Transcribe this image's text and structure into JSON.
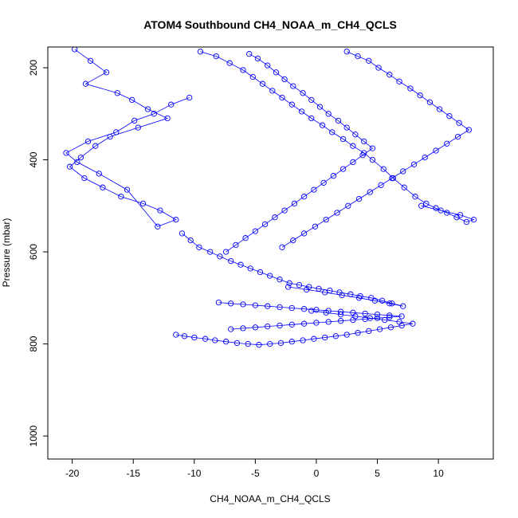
{
  "chart_data": {
    "type": "scatter",
    "title": "ATOM4 Southbound CH4_NOAA_m_CH4_QCLS",
    "xlabel": "CH4_NOAA_m_CH4_QCLS",
    "ylabel": "Pressure (mbar)",
    "xlim": [
      -22,
      14.5
    ],
    "ylim": [
      1050,
      155
    ],
    "y_reversed": true,
    "x_ticks": [
      -20,
      -15,
      -10,
      -5,
      0,
      5,
      10
    ],
    "x_tick_labels": [
      "-20",
      "-15",
      "-10",
      "-5",
      "0",
      "5",
      "10"
    ],
    "y_ticks": [
      200,
      400,
      600,
      800,
      1000
    ],
    "y_tick_labels": [
      "200",
      "400",
      "600",
      "800",
      "1000"
    ],
    "grid": false,
    "legend": "none",
    "color": "#0000ff",
    "marker": "open-circle",
    "connected": true,
    "series": [
      {
        "x": [
          -19.8,
          -18.5,
          -17.2,
          -18.9,
          -16.3,
          -15.1,
          -13.8,
          -12.2,
          -14.6,
          -16.9,
          -18.1,
          -19.3,
          -20.2,
          -19.0,
          -17.5,
          -16.0,
          -14.2,
          -12.8,
          -11.5,
          -13.0,
          -15.5,
          -17.8,
          -19.6,
          -20.5,
          -18.7,
          -16.4,
          -14.9,
          -13.3,
          -11.9,
          -10.4
        ],
        "y": [
          160,
          185,
          210,
          235,
          255,
          270,
          290,
          310,
          330,
          350,
          370,
          395,
          415,
          440,
          460,
          480,
          495,
          510,
          530,
          545,
          465,
          430,
          405,
          385,
          360,
          340,
          315,
          300,
          280,
          265
        ]
      },
      {
        "x": [
          -9.5,
          -8.2,
          -7.1,
          -6.0,
          -5.2,
          -4.4,
          -3.6,
          -2.8,
          -2.0,
          -1.2,
          -0.4,
          0.5,
          1.3,
          2.2,
          3.0,
          3.9,
          4.6,
          5.5,
          6.3,
          7.2,
          8.1,
          9.0,
          9.8,
          10.7,
          11.5,
          12.3,
          12.9,
          11.8,
          10.2,
          8.6
        ],
        "y": [
          165,
          175,
          190,
          205,
          220,
          235,
          250,
          265,
          280,
          295,
          310,
          325,
          340,
          355,
          370,
          385,
          400,
          420,
          440,
          460,
          480,
          495,
          505,
          515,
          525,
          535,
          530,
          520,
          510,
          500
        ]
      },
      {
        "x": [
          -11.0,
          -10.3,
          -9.6,
          -8.7,
          -7.9,
          -7.0,
          -6.2,
          -5.4,
          -4.6,
          -3.8,
          -3.0,
          -2.2,
          -1.4,
          -0.6,
          0.2,
          1.1,
          1.9,
          2.8,
          3.6,
          4.5,
          5.4,
          6.2,
          7.1,
          6.0,
          4.8,
          3.5,
          2.1,
          0.7,
          -0.8,
          -2.3
        ],
        "y": [
          560,
          575,
          590,
          600,
          610,
          620,
          628,
          636,
          644,
          652,
          660,
          668,
          672,
          676,
          680,
          684,
          688,
          692,
          696,
          700,
          706,
          712,
          718,
          712,
          706,
          700,
          694,
          688,
          682,
          676
        ]
      },
      {
        "x": [
          -11.5,
          -10.8,
          -10.0,
          -9.1,
          -8.3,
          -7.4,
          -6.5,
          -5.6,
          -4.7,
          -3.8,
          -2.9,
          -2.0,
          -1.1,
          -0.2,
          0.7,
          1.6,
          2.5,
          3.4,
          4.3,
          5.2,
          6.1,
          7.0,
          7.9,
          6.8,
          5.6,
          4.4,
          3.2,
          2.0,
          0.8,
          -0.4
        ],
        "y": [
          780,
          783,
          786,
          789,
          792,
          795,
          798,
          800,
          802,
          800,
          798,
          795,
          792,
          789,
          786,
          783,
          780,
          776,
          772,
          768,
          764,
          760,
          756,
          752,
          748,
          744,
          740,
          736,
          732,
          728
        ]
      },
      {
        "x": [
          -8.0,
          -7.0,
          -6.0,
          -5.0,
          -4.0,
          -3.0,
          -2.0,
          -1.0,
          0.0,
          1.0,
          2.0,
          3.0,
          4.0,
          5.0,
          6.0,
          7.0,
          6.0,
          5.0,
          4.0,
          3.0,
          2.0,
          1.0,
          0.0,
          -1.0,
          -2.0,
          -3.0,
          -4.0,
          -5.0,
          -6.0,
          -7.0
        ],
        "y": [
          710,
          712,
          714,
          716,
          718,
          720,
          722,
          724,
          726,
          728,
          730,
          732,
          734,
          736,
          738,
          740,
          742,
          744,
          746,
          748,
          750,
          752,
          754,
          756,
          758,
          760,
          762,
          764,
          766,
          768
        ]
      },
      {
        "x": [
          -5.5,
          -4.8,
          -4.0,
          -3.3,
          -2.6,
          -1.9,
          -1.1,
          -0.4,
          0.3,
          1.0,
          1.8,
          2.5,
          3.2,
          3.9,
          4.6,
          3.8,
          3.0,
          2.2,
          1.4,
          0.6,
          -0.2,
          -1.0,
          -1.8,
          -2.6,
          -3.4,
          -4.2,
          -5.0,
          -5.8,
          -6.6,
          -7.4
        ],
        "y": [
          170,
          180,
          195,
          210,
          225,
          240,
          255,
          270,
          285,
          300,
          315,
          330,
          345,
          360,
          375,
          390,
          405,
          420,
          435,
          450,
          465,
          480,
          495,
          510,
          525,
          540,
          555,
          570,
          585,
          600
        ]
      },
      {
        "x": [
          2.5,
          3.4,
          4.3,
          5.1,
          6.0,
          6.8,
          7.7,
          8.5,
          9.3,
          10.1,
          10.9,
          11.7,
          12.5,
          11.6,
          10.7,
          9.8,
          8.9,
          8.0,
          7.1,
          6.2,
          5.3,
          4.4,
          3.5,
          2.6,
          1.7,
          0.8,
          -0.1,
          -1.0,
          -1.9,
          -2.8
        ],
        "y": [
          165,
          175,
          185,
          200,
          215,
          230,
          245,
          260,
          275,
          290,
          305,
          320,
          335,
          350,
          365,
          380,
          395,
          410,
          425,
          440,
          455,
          470,
          485,
          500,
          515,
          530,
          545,
          560,
          575,
          590
        ]
      }
    ]
  }
}
